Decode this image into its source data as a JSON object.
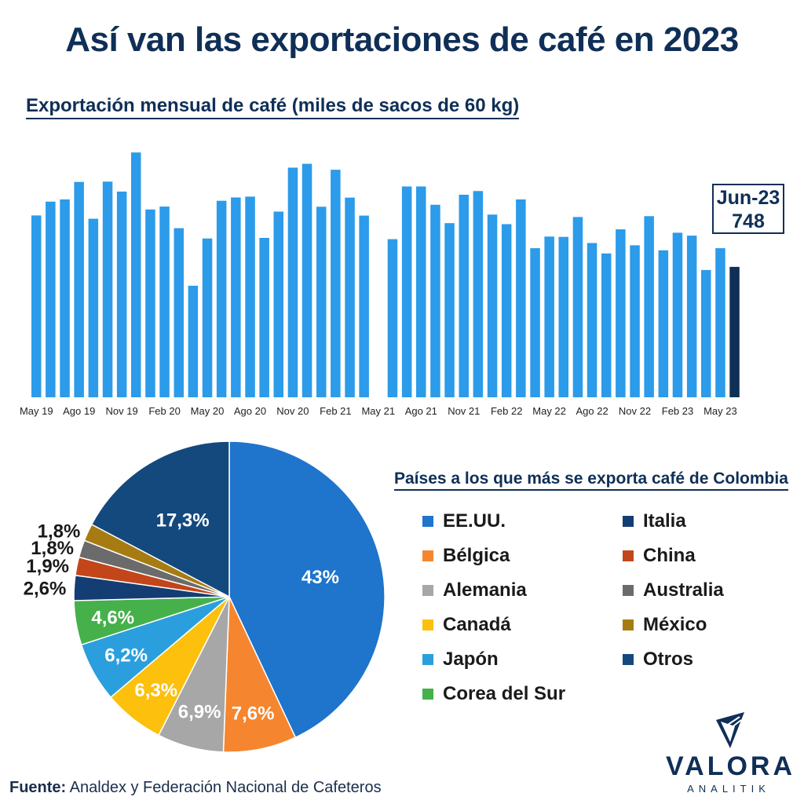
{
  "title": "Así van las exportaciones de café en 2023",
  "bar_subtitle": "Exportación mensual de café (miles de sacos de 60 kg)",
  "callout": {
    "label": "Jun-23",
    "value": "748"
  },
  "legend_title": "Países a los que más se exporta café de Colombia",
  "source": {
    "label": "Fuente:",
    "text": "Analdex y Federación Nacional de Cafeteros"
  },
  "logo": {
    "word": "VALORA",
    "sub": "ANALITIK"
  },
  "colors": {
    "bar": "#2b9bea",
    "bar_last": "#0f2f57",
    "navy": "#0f2f57"
  },
  "chart_data": [
    {
      "type": "bar",
      "x_tick_labels": [
        "May 19",
        "Ago 19",
        "Nov 19",
        "Feb 20",
        "May 20",
        "Ago 20",
        "Nov 20",
        "Feb 21",
        "May 21",
        "Ago 21",
        "Nov 21",
        "Feb 22",
        "May 22",
        "Ago 22",
        "Nov 22",
        "Feb 23",
        "May 23"
      ],
      "values": [
        1043,
        1122,
        1135,
        1235,
        1024,
        1237,
        1180,
        1404,
        1077,
        1094,
        970,
        640,
        911,
        1127,
        1146,
        1151,
        914,
        1065,
        1317,
        1339,
        1093,
        1305,
        1145,
        1042,
        0,
        907,
        1209,
        1209,
        1104,
        999,
        1162,
        1183,
        1048,
        993,
        1135,
        855,
        922,
        920,
        1034,
        885,
        825,
        963,
        872,
        1039,
        843,
        944,
        927,
        730,
        855,
        748
      ],
      "highlight_last": true,
      "ylim": [
        0,
        1450
      ],
      "grid": false
    },
    {
      "type": "pie",
      "labels": [
        "EE.UU.",
        "Bélgica",
        "Alemania",
        "Canadá",
        "Japón",
        "Corea del Sur",
        "Italia",
        "China",
        "Australia",
        "México",
        "Otros"
      ],
      "values": [
        43,
        7.6,
        6.9,
        6.3,
        6.2,
        4.6,
        2.6,
        1.9,
        1.8,
        1.8,
        17.3
      ],
      "value_labels": [
        "43%",
        "7,6%",
        "6,9%",
        "6,3%",
        "6,2%",
        "4,6%",
        "2,6%",
        "1,9%",
        "1,8%",
        "1,8%",
        "17,3%"
      ],
      "colors": [
        "#1f74cc",
        "#f5862f",
        "#a7a7a7",
        "#fcc00d",
        "#2b9fdd",
        "#46b04a",
        "#143d73",
        "#c2461a",
        "#6b6b6b",
        "#a67c12",
        "#14497e"
      ]
    }
  ]
}
